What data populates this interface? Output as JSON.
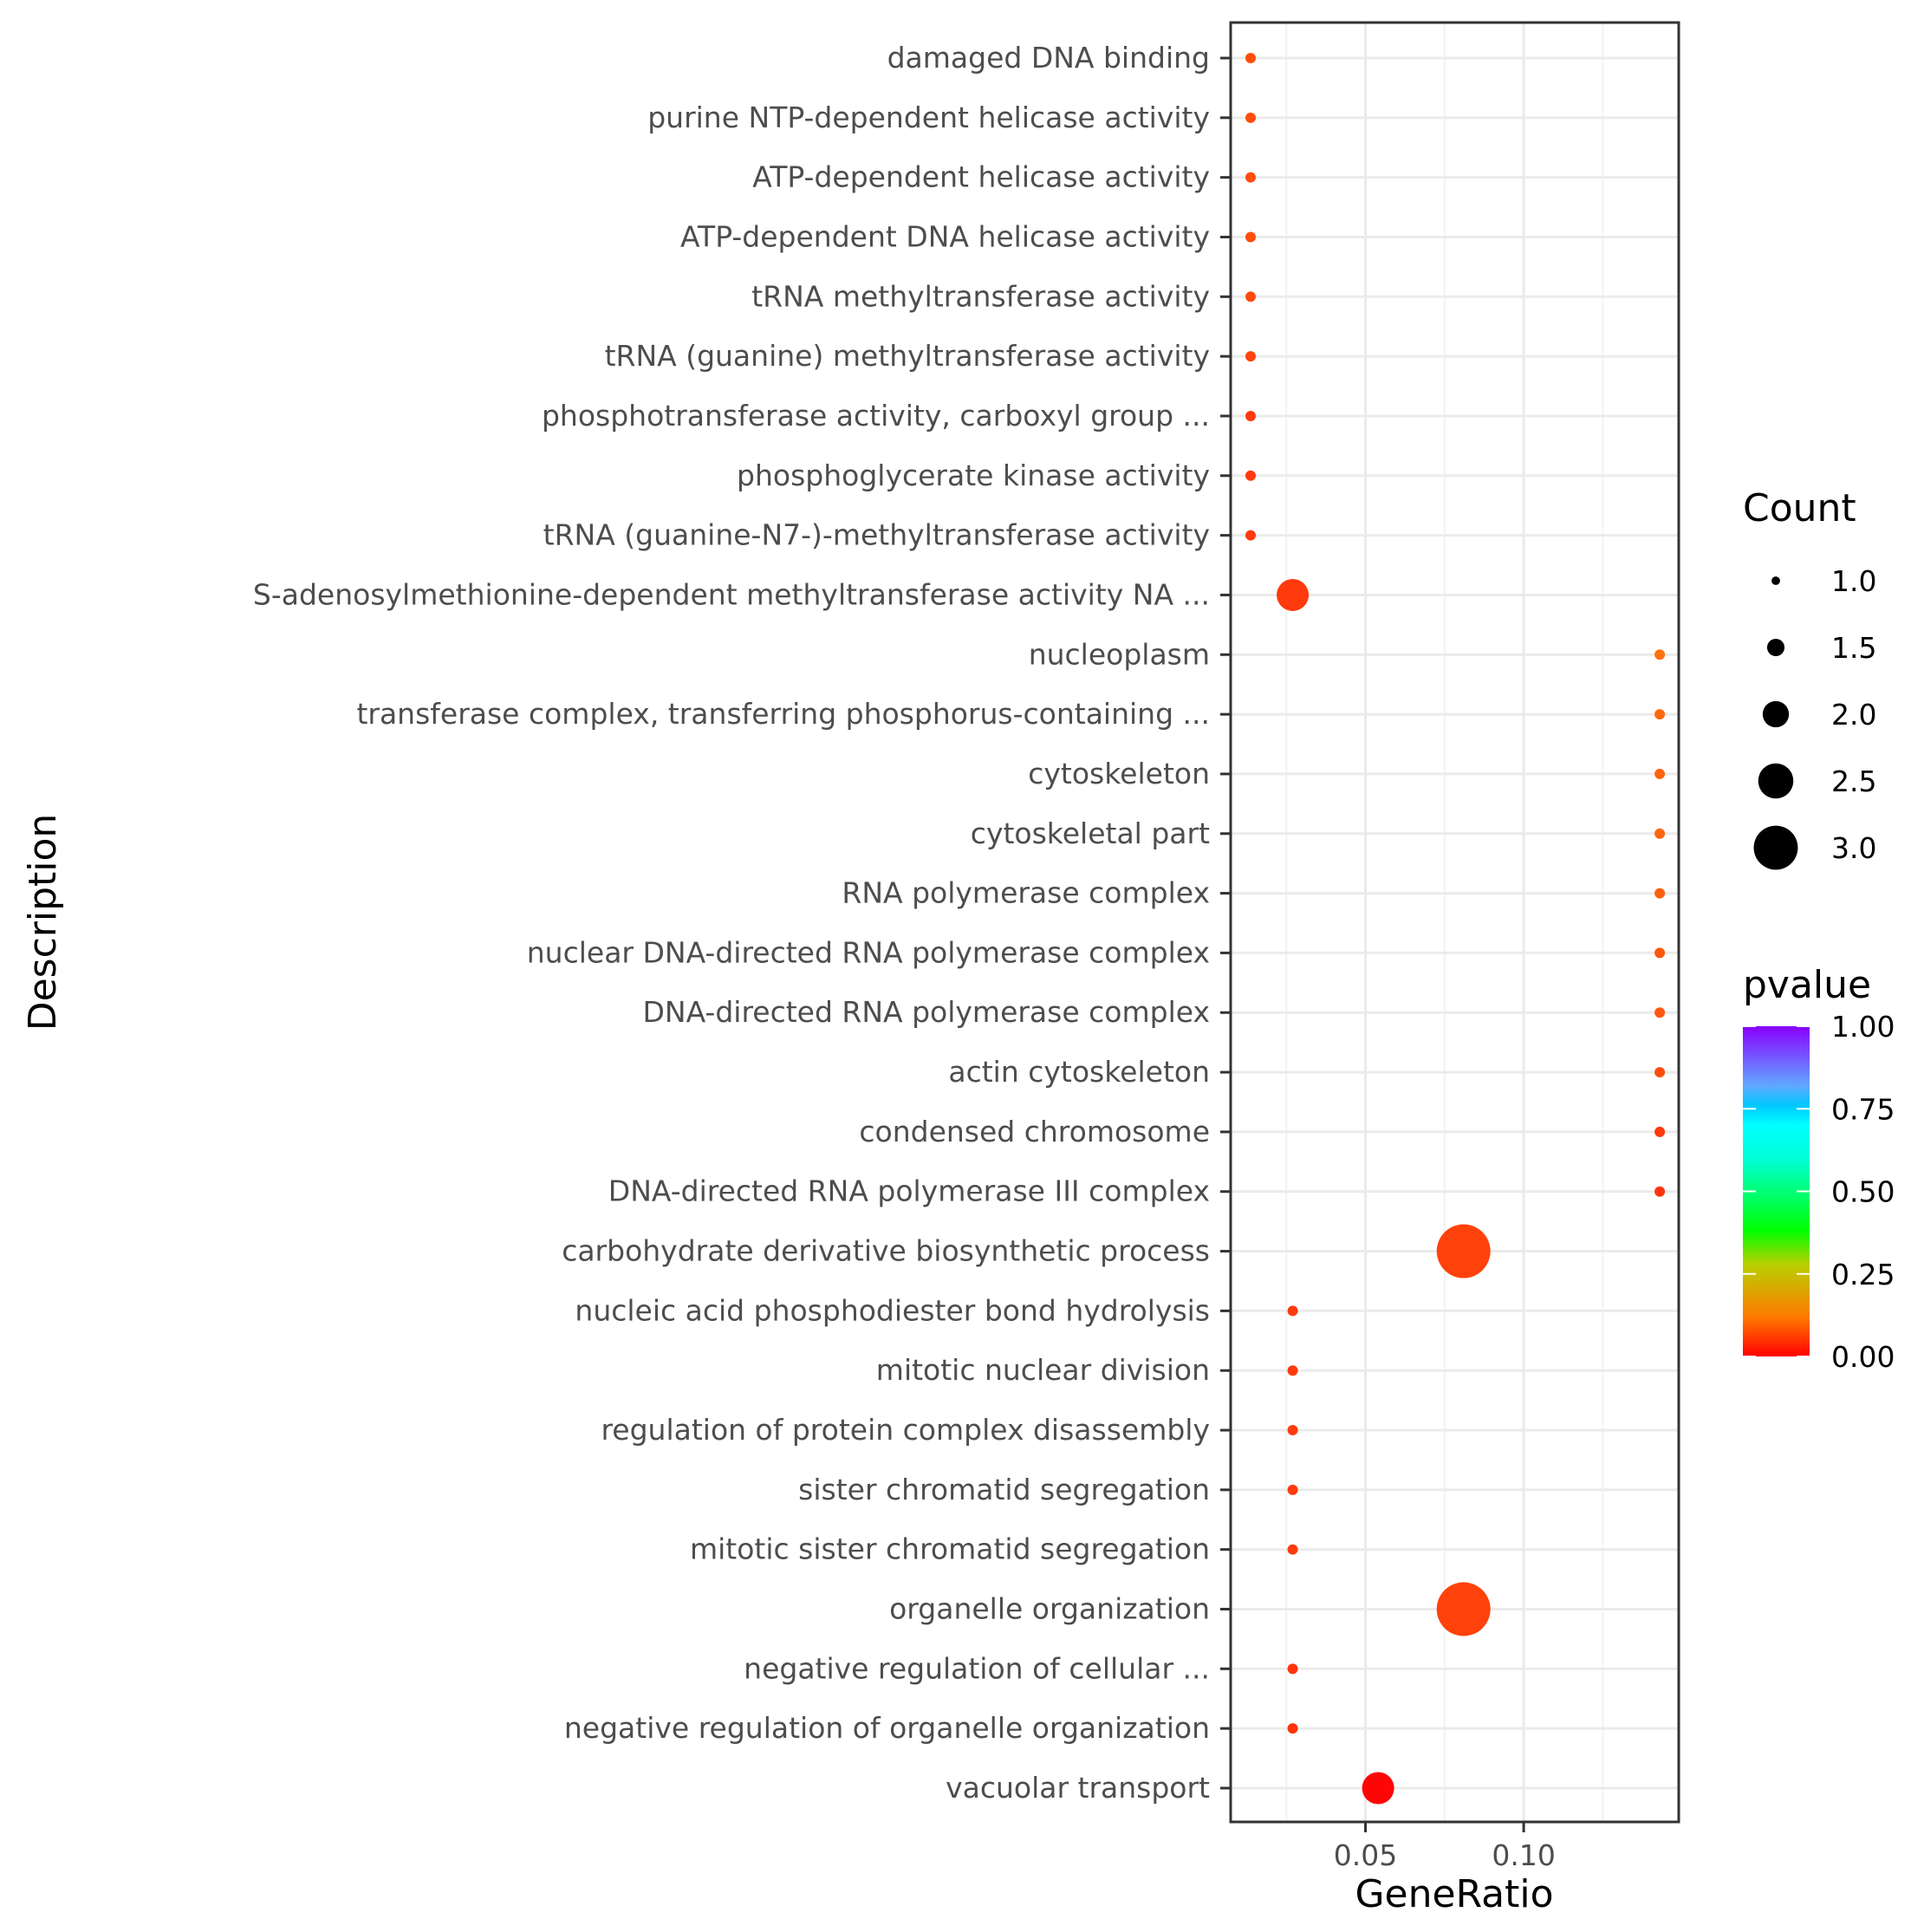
{
  "chart_data": {
    "type": "scatter",
    "title": "",
    "xlabel": "GeneRatio",
    "ylabel": "Description",
    "xlim": [
      0.0074,
      0.149
    ],
    "x_ticks": [
      0.05,
      0.1
    ],
    "x_tick_labels": [
      "0.05",
      "0.10"
    ],
    "grid": true,
    "points": [
      {
        "description": "damaged DNA binding",
        "gene_ratio": 0.0137,
        "count": 1,
        "pvalue": 0.03,
        "color": "#ff4e0c"
      },
      {
        "description": "purine NTP-dependent helicase activity",
        "gene_ratio": 0.0137,
        "count": 1,
        "pvalue": 0.03,
        "color": "#ff4e0c"
      },
      {
        "description": "ATP-dependent helicase activity",
        "gene_ratio": 0.0137,
        "count": 1,
        "pvalue": 0.03,
        "color": "#ff4e0c"
      },
      {
        "description": "ATP-dependent DNA helicase activity",
        "gene_ratio": 0.0137,
        "count": 1,
        "pvalue": 0.03,
        "color": "#ff4e0c"
      },
      {
        "description": "tRNA methyltransferase activity",
        "gene_ratio": 0.0137,
        "count": 1,
        "pvalue": 0.028,
        "color": "#ff480c"
      },
      {
        "description": "tRNA (guanine) methyltransferase activity",
        "gene_ratio": 0.0137,
        "count": 1,
        "pvalue": 0.025,
        "color": "#ff420c"
      },
      {
        "description": "phosphotransferase activity, carboxyl group ...",
        "gene_ratio": 0.0137,
        "count": 1,
        "pvalue": 0.02,
        "color": "#ff3a0c"
      },
      {
        "description": "phosphoglycerate kinase activity",
        "gene_ratio": 0.0137,
        "count": 1,
        "pvalue": 0.02,
        "color": "#ff3a0c"
      },
      {
        "description": "tRNA (guanine-N7-)-methyltransferase activity",
        "gene_ratio": 0.0137,
        "count": 1,
        "pvalue": 0.02,
        "color": "#ff3a0c"
      },
      {
        "description": "S-adenosylmethionine-dependent methyltransferase activity NA ...",
        "gene_ratio": 0.027,
        "count": 2,
        "pvalue": 0.02,
        "color": "#ff3a0c"
      },
      {
        "description": "nucleoplasm",
        "gene_ratio": 0.143,
        "count": 1,
        "pvalue": 0.045,
        "color": "#ff7010"
      },
      {
        "description": "transferase complex, transferring phosphorus-containing ...",
        "gene_ratio": 0.143,
        "count": 1,
        "pvalue": 0.042,
        "color": "#ff6a10"
      },
      {
        "description": "cytoskeleton",
        "gene_ratio": 0.143,
        "count": 1,
        "pvalue": 0.04,
        "color": "#ff6410"
      },
      {
        "description": "cytoskeletal part",
        "gene_ratio": 0.143,
        "count": 1,
        "pvalue": 0.04,
        "color": "#ff6410"
      },
      {
        "description": "RNA polymerase complex",
        "gene_ratio": 0.143,
        "count": 1,
        "pvalue": 0.038,
        "color": "#ff600e"
      },
      {
        "description": "nuclear DNA-directed RNA polymerase complex",
        "gene_ratio": 0.143,
        "count": 1,
        "pvalue": 0.035,
        "color": "#ff580e"
      },
      {
        "description": "DNA-directed RNA polymerase complex",
        "gene_ratio": 0.143,
        "count": 1,
        "pvalue": 0.035,
        "color": "#ff580e"
      },
      {
        "description": "actin cytoskeleton",
        "gene_ratio": 0.143,
        "count": 1,
        "pvalue": 0.03,
        "color": "#ff4e0c"
      },
      {
        "description": "condensed chromosome",
        "gene_ratio": 0.143,
        "count": 1,
        "pvalue": 0.02,
        "color": "#ff3a0c"
      },
      {
        "description": "DNA-directed RNA polymerase III complex",
        "gene_ratio": 0.143,
        "count": 1,
        "pvalue": 0.018,
        "color": "#ff340c"
      },
      {
        "description": "carbohydrate derivative biosynthetic process",
        "gene_ratio": 0.081,
        "count": 3,
        "pvalue": 0.025,
        "color": "#ff420c"
      },
      {
        "description": "nucleic acid phosphodiester bond hydrolysis",
        "gene_ratio": 0.027,
        "count": 1,
        "pvalue": 0.02,
        "color": "#ff3a0c"
      },
      {
        "description": "mitotic nuclear division",
        "gene_ratio": 0.027,
        "count": 1,
        "pvalue": 0.02,
        "color": "#ff3a0c"
      },
      {
        "description": "regulation of protein complex disassembly",
        "gene_ratio": 0.027,
        "count": 1,
        "pvalue": 0.02,
        "color": "#ff3a0c"
      },
      {
        "description": "sister chromatid segregation",
        "gene_ratio": 0.027,
        "count": 1,
        "pvalue": 0.02,
        "color": "#ff3a0c"
      },
      {
        "description": "mitotic sister chromatid segregation",
        "gene_ratio": 0.027,
        "count": 1,
        "pvalue": 0.02,
        "color": "#ff3a0c"
      },
      {
        "description": "organelle organization",
        "gene_ratio": 0.081,
        "count": 3,
        "pvalue": 0.025,
        "color": "#ff420c"
      },
      {
        "description": "negative regulation of cellular ...",
        "gene_ratio": 0.027,
        "count": 1,
        "pvalue": 0.018,
        "color": "#ff340c"
      },
      {
        "description": "negative regulation of organelle organization",
        "gene_ratio": 0.027,
        "count": 1,
        "pvalue": 0.018,
        "color": "#ff340c"
      },
      {
        "description": "vacuolar transport",
        "gene_ratio": 0.054,
        "count": 2,
        "pvalue": 0.003,
        "color": "#ff0606"
      }
    ],
    "legend": {
      "placement": "right",
      "size": {
        "title": "Count",
        "values": [
          1.0,
          1.5,
          2.0,
          2.5,
          3.0
        ],
        "labels": [
          "1.0",
          "1.5",
          "2.0",
          "2.5",
          "3.0"
        ]
      },
      "color": {
        "title": "pvalue",
        "range": [
          0,
          1
        ],
        "labels": [
          "1.00",
          "0.75",
          "0.50",
          "0.25",
          "0.00"
        ],
        "gradient": [
          "#ff0000",
          "#ff7a00",
          "#c8c800",
          "#00ff00",
          "#00ffd0",
          "#00ffff",
          "#00c8ff",
          "#60a0ff",
          "#8a00ff"
        ]
      }
    }
  }
}
